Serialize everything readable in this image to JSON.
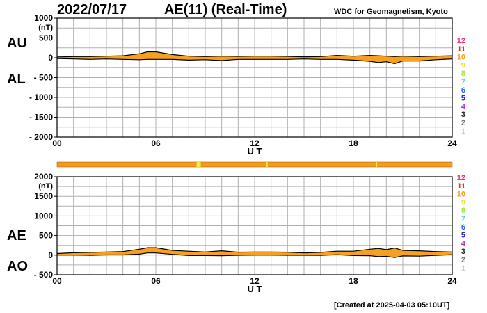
{
  "header": {
    "date": "2022/07/17",
    "title": "AE(11) (Real-Time)",
    "source": "WDC for Geomagnetism, Kyoto"
  },
  "footer": "[Created at 2025-04-03 05:10UT]",
  "colors": {
    "fill": "#f5a023",
    "line": "#000000",
    "grid": "#b0b0b0",
    "bar": "#f59a1c",
    "bar_marker": "#f3ee3a"
  },
  "station_scale": [
    {
      "label": "12",
      "color": "#e8327c"
    },
    {
      "label": "11",
      "color": "#e8241c"
    },
    {
      "label": "10",
      "color": "#f5a023"
    },
    {
      "label": "9",
      "color": "#e9e23a"
    },
    {
      "label": "8",
      "color": "#9ee83a"
    },
    {
      "label": "7",
      "color": "#3ad0e8"
    },
    {
      "label": "6",
      "color": "#2a6be8"
    },
    {
      "label": "5",
      "color": "#2a2ad0"
    },
    {
      "label": "4",
      "color": "#c22ad0"
    },
    {
      "label": "3",
      "color": "#222222"
    },
    {
      "label": "2",
      "color": "#777777"
    },
    {
      "label": "1",
      "color": "#cccccc"
    }
  ],
  "station_bar": {
    "color": "orange",
    "markers_hours": [
      8.6,
      12.75,
      19.4
    ]
  },
  "chart_data": [
    {
      "type": "area",
      "panel": "AU/AL",
      "series_labels": [
        "AU",
        "AL"
      ],
      "xlabel": "U T",
      "ylabel_unit": "(nT)",
      "xlim": [
        0,
        24
      ],
      "ylim": [
        -2000,
        1000
      ],
      "xticks": [
        0,
        6,
        12,
        18,
        24
      ],
      "xtick_labels": [
        "00",
        "06",
        "12",
        "18",
        "24"
      ],
      "yticks": [
        1000,
        500,
        0,
        -500,
        -1000,
        -1500,
        -2000
      ],
      "ytick_labels": [
        "1000",
        "500",
        "0",
        "- 500",
        "- 1000",
        "- 1500",
        "- 2000"
      ],
      "grid": true,
      "x": [
        0,
        1,
        2,
        3,
        4,
        5,
        5.5,
        6,
        7,
        8,
        9,
        10,
        11,
        12,
        13,
        14,
        15,
        16,
        17,
        18,
        19,
        19.5,
        20,
        20.5,
        21,
        22,
        23,
        24
      ],
      "series": [
        {
          "name": "AU",
          "values": [
            20,
            30,
            30,
            40,
            50,
            100,
            150,
            150,
            80,
            40,
            30,
            40,
            35,
            40,
            40,
            35,
            25,
            30,
            60,
            40,
            60,
            50,
            40,
            30,
            40,
            30,
            40,
            50
          ]
        },
        {
          "name": "AL",
          "values": [
            -20,
            -30,
            -40,
            -30,
            -40,
            -50,
            -40,
            -40,
            -40,
            -60,
            -50,
            -70,
            -40,
            -40,
            -40,
            -40,
            -30,
            -40,
            -40,
            -60,
            -90,
            -120,
            -100,
            -150,
            -80,
            -80,
            -50,
            -30
          ]
        }
      ]
    },
    {
      "type": "area",
      "panel": "AE/AO",
      "series_labels": [
        "AE",
        "AO"
      ],
      "xlabel": "U T",
      "ylabel_unit": "(nT)",
      "xlim": [
        0,
        24
      ],
      "ylim": [
        -500,
        2000
      ],
      "xticks": [
        0,
        6,
        12,
        18,
        24
      ],
      "xtick_labels": [
        "00",
        "06",
        "12",
        "18",
        "24"
      ],
      "yticks": [
        2000,
        1500,
        1000,
        500,
        0,
        -500
      ],
      "ytick_labels": [
        "2000",
        "1500",
        "1000",
        "500",
        "0",
        "- 500"
      ],
      "grid": true,
      "x": [
        0,
        1,
        2,
        3,
        4,
        5,
        5.5,
        6,
        7,
        8,
        9,
        10,
        11,
        12,
        13,
        14,
        15,
        16,
        17,
        18,
        19,
        19.5,
        20,
        20.5,
        21,
        22,
        23,
        24
      ],
      "series": [
        {
          "name": "AE",
          "values": [
            40,
            60,
            70,
            80,
            90,
            150,
            190,
            190,
            120,
            100,
            80,
            110,
            75,
            80,
            80,
            75,
            55,
            70,
            100,
            100,
            150,
            170,
            140,
            180,
            120,
            110,
            90,
            80
          ]
        },
        {
          "name": "AO",
          "values": [
            0,
            0,
            -5,
            5,
            5,
            25,
            55,
            55,
            20,
            -10,
            -10,
            -15,
            -3,
            0,
            0,
            -3,
            -3,
            -5,
            10,
            -10,
            -15,
            -35,
            -30,
            -60,
            -20,
            -25,
            -5,
            10
          ]
        }
      ]
    }
  ]
}
